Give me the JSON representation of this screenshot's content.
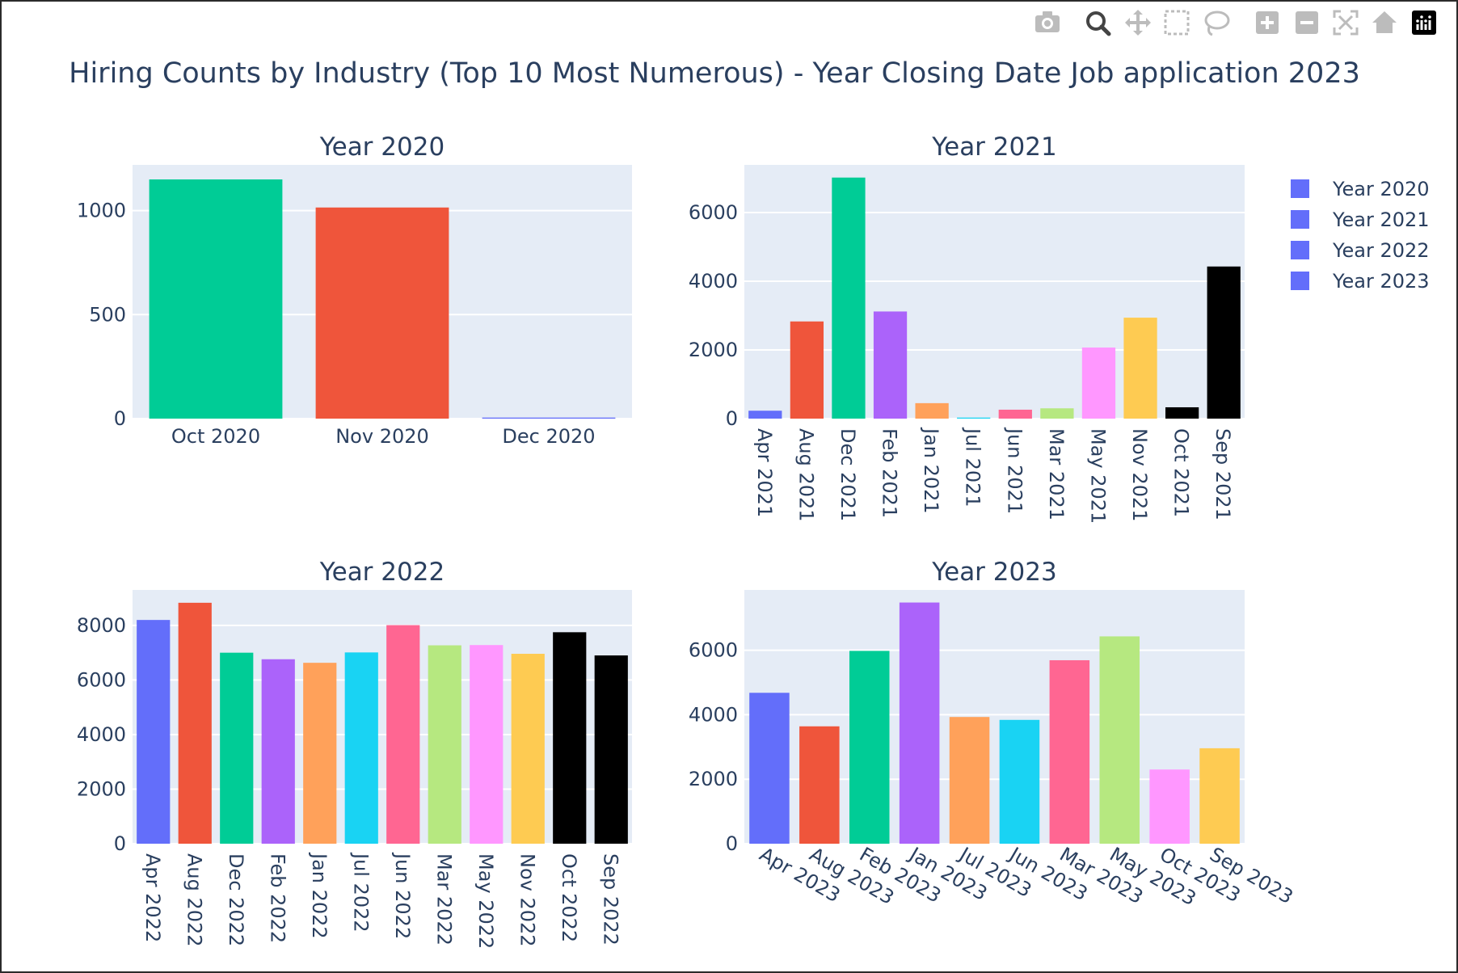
{
  "title": "Hiring Counts by Industry (Top 10 Most Numerous) - Year Closing Date Job application 2023",
  "colors": {
    "plot_bg": "#e5ecf6",
    "grid": "#ffffff",
    "text": "#2a3f5f",
    "legend_swatch": "#636efa",
    "modebar_icon": "#bcbcbc",
    "modebar_active": "#444444"
  },
  "modebar": [
    {
      "icon": "camera-icon",
      "label": "Download plot as a png"
    },
    {
      "icon": "zoom-icon",
      "label": "Zoom"
    },
    {
      "icon": "pan-icon",
      "label": "Pan"
    },
    {
      "icon": "box-select-icon",
      "label": "Box Select"
    },
    {
      "icon": "lasso-select-icon",
      "label": "Lasso Select"
    },
    {
      "icon": "zoom-in-icon",
      "label": "Zoom in"
    },
    {
      "icon": "zoom-out-icon",
      "label": "Zoom out"
    },
    {
      "icon": "autoscale-icon",
      "label": "Autoscale"
    },
    {
      "icon": "reset-axes-icon",
      "label": "Reset axes"
    },
    {
      "icon": "plotly-logo-icon",
      "label": "Produced with Plotly"
    }
  ],
  "legend": {
    "placement": "top-right",
    "items": [
      "Year 2020",
      "Year 2021",
      "Year 2022",
      "Year 2023"
    ]
  },
  "chart_data": [
    {
      "type": "bar",
      "title": "Year 2020",
      "categories": [
        "Oct 2020",
        "Nov 2020",
        "Dec 2020"
      ],
      "values": [
        1150,
        1015,
        5
      ],
      "colors": [
        "#00cc96",
        "#ef553b",
        "#636efa"
      ],
      "ylim": [
        0,
        1220
      ],
      "yticks": [
        0,
        500,
        1000
      ],
      "tick_angle": 0,
      "grid": true
    },
    {
      "type": "bar",
      "title": "Year 2021",
      "categories": [
        "Apr 2021",
        "Aug 2021",
        "Dec 2021",
        "Feb 2021",
        "Jan 2021",
        "Jul 2021",
        "Jun 2021",
        "Mar 2021",
        "May 2021",
        "Nov 2021",
        "Oct 2021",
        "Sep 2021"
      ],
      "values": [
        230,
        2830,
        7020,
        3120,
        450,
        30,
        260,
        300,
        2070,
        2940,
        330,
        4430
      ],
      "colors": [
        "#636efa",
        "#ef553b",
        "#00cc96",
        "#ab63fa",
        "#ffa15a",
        "#19d3f3",
        "#ff6692",
        "#b6e880",
        "#ff97ff",
        "#fecb52",
        "#000000",
        "#000000"
      ],
      "ylim": [
        0,
        7390
      ],
      "yticks": [
        0,
        2000,
        4000,
        6000
      ],
      "tick_angle": 90,
      "grid": true
    },
    {
      "type": "bar",
      "title": "Year 2022",
      "categories": [
        "Apr 2022",
        "Aug 2022",
        "Dec 2022",
        "Feb 2022",
        "Jan 2022",
        "Jul 2022",
        "Jun 2022",
        "Mar 2022",
        "May 2022",
        "Nov 2022",
        "Oct 2022",
        "Sep 2022"
      ],
      "values": [
        8200,
        8830,
        7000,
        6760,
        6630,
        7010,
        8010,
        7270,
        7280,
        6960,
        7750,
        6900
      ],
      "colors": [
        "#636efa",
        "#ef553b",
        "#00cc96",
        "#ab63fa",
        "#ffa15a",
        "#19d3f3",
        "#ff6692",
        "#b6e880",
        "#ff97ff",
        "#fecb52",
        "#000000",
        "#000000"
      ],
      "ylim": [
        0,
        9300
      ],
      "yticks": [
        0,
        2000,
        4000,
        6000,
        8000
      ],
      "tick_angle": 90,
      "grid": true
    },
    {
      "type": "bar",
      "title": "Year 2023",
      "categories": [
        "Apr 2023",
        "Aug 2023",
        "Feb 2023",
        "Jan 2023",
        "Jul 2023",
        "Jun 2023",
        "Mar 2023",
        "May 2023",
        "Oct 2023",
        "Sep 2023"
      ],
      "values": [
        4680,
        3640,
        5980,
        7480,
        3930,
        3840,
        5690,
        6430,
        2300,
        2960
      ],
      "colors": [
        "#636efa",
        "#ef553b",
        "#00cc96",
        "#ab63fa",
        "#ffa15a",
        "#19d3f3",
        "#ff6692",
        "#b6e880",
        "#ff97ff",
        "#fecb52"
      ],
      "ylim": [
        0,
        7870
      ],
      "yticks": [
        0,
        2000,
        4000,
        6000
      ],
      "tick_angle": 30,
      "grid": true
    }
  ]
}
